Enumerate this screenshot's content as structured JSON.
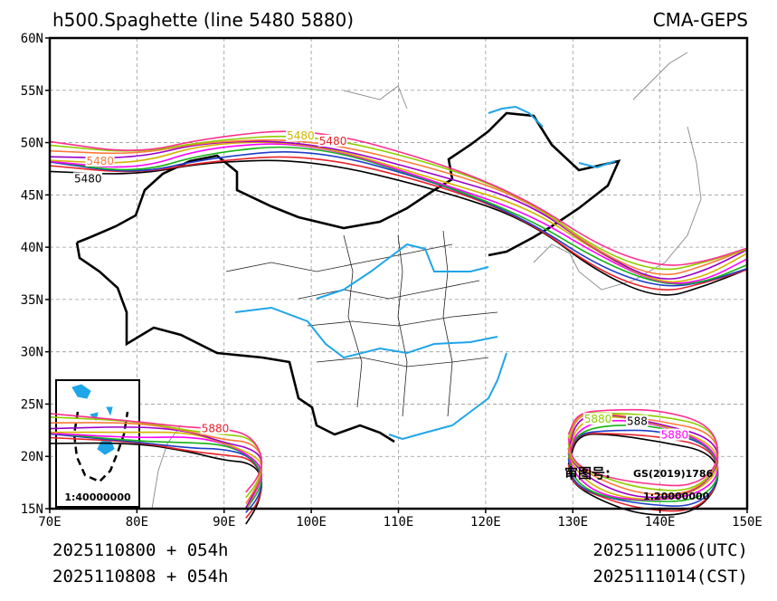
{
  "chart_data": {
    "type": "line",
    "title": "h500.Spaghette (line 5480 5880)",
    "source": "CMA-GEPS",
    "xlim": [
      70,
      150
    ],
    "ylim": [
      15,
      60
    ],
    "x_ticks": [
      70,
      80,
      90,
      100,
      110,
      120,
      130,
      140,
      150
    ],
    "y_ticks": [
      15,
      20,
      25,
      30,
      35,
      40,
      45,
      50,
      55,
      60
    ],
    "x_tick_labels": [
      "70E",
      "80E",
      "90E",
      "100E",
      "110E",
      "120E",
      "130E",
      "140E",
      "150E"
    ],
    "y_tick_labels": [
      "15N",
      "20N",
      "25N",
      "30N",
      "35N",
      "40N",
      "45N",
      "50N",
      "55N",
      "60N"
    ],
    "grid": true,
    "contour_levels": [
      5480,
      5880
    ],
    "member_colors": [
      "#000000",
      "#e8232a",
      "#1f3dc8",
      "#16b316",
      "#ff00ff",
      "#d4b300",
      "#9a00c8",
      "#ff7a3a",
      "#8fce00",
      "#ff2f8e"
    ],
    "series": [
      {
        "name": "5480 contour",
        "values": [
          [
            70,
            48.5
          ],
          [
            80,
            47.8
          ],
          [
            88,
            49.5
          ],
          [
            100,
            50.0
          ],
          [
            115,
            46.5
          ],
          [
            125,
            43.5
          ],
          [
            133,
            39.0
          ],
          [
            140,
            36.5
          ],
          [
            145,
            37.2
          ],
          [
            150,
            39.0
          ]
        ]
      },
      {
        "name": "5880 contour (west)",
        "values": [
          [
            70,
            22.5
          ],
          [
            80,
            22.2
          ],
          [
            86,
            21.8
          ],
          [
            90,
            21.2
          ],
          [
            93,
            20.5
          ],
          [
            94.5,
            19.0
          ],
          [
            94,
            17.0
          ],
          [
            92.5,
            15.0
          ]
        ]
      },
      {
        "name": "5880 contour (east cells)",
        "values": [
          [
            129.5,
            20.5
          ],
          [
            130.5,
            23.0
          ],
          [
            134,
            23.5
          ],
          [
            140,
            23.0
          ],
          [
            146,
            21.5
          ],
          [
            147,
            18.5
          ],
          [
            144,
            16.0
          ],
          [
            138,
            15.8
          ],
          [
            133,
            16.8
          ],
          [
            130,
            18.5
          ],
          [
            129.5,
            20.5
          ]
        ]
      }
    ],
    "contour_labels": [
      {
        "text": "5480",
        "x": 97.2,
        "y": 50.3,
        "color": "#d4b300"
      },
      {
        "text": "5480",
        "x": 100.9,
        "y": 49.8,
        "color": "#e8232a"
      },
      {
        "text": "5480",
        "x": 72.8,
        "y": 46.2,
        "color": "#000000"
      },
      {
        "text": "5480",
        "x": 74.2,
        "y": 47.9,
        "color": "#ff7a3a"
      },
      {
        "text": "5880",
        "x": 87.4,
        "y": 22.3,
        "color": "#e8232a"
      },
      {
        "text": "5880",
        "x": 131.3,
        "y": 23.2,
        "color": "#8fce00"
      },
      {
        "text": "588",
        "x": 136.2,
        "y": 23.0,
        "color": "#000000"
      },
      {
        "text": "5880",
        "x": 140.1,
        "y": 21.7,
        "color": "#ff00ff"
      }
    ],
    "inset": {
      "label": "1:40000000"
    },
    "review": {
      "label": "审图号:",
      "code": "GS(2019)1786",
      "scale": "1:20000000"
    },
    "footer": {
      "init_utc": "2025110800 + 054h",
      "init_cst": "2025110808 + 054h",
      "valid_utc": "2025111006(UTC)",
      "valid_cst": "2025111014(CST)"
    }
  }
}
